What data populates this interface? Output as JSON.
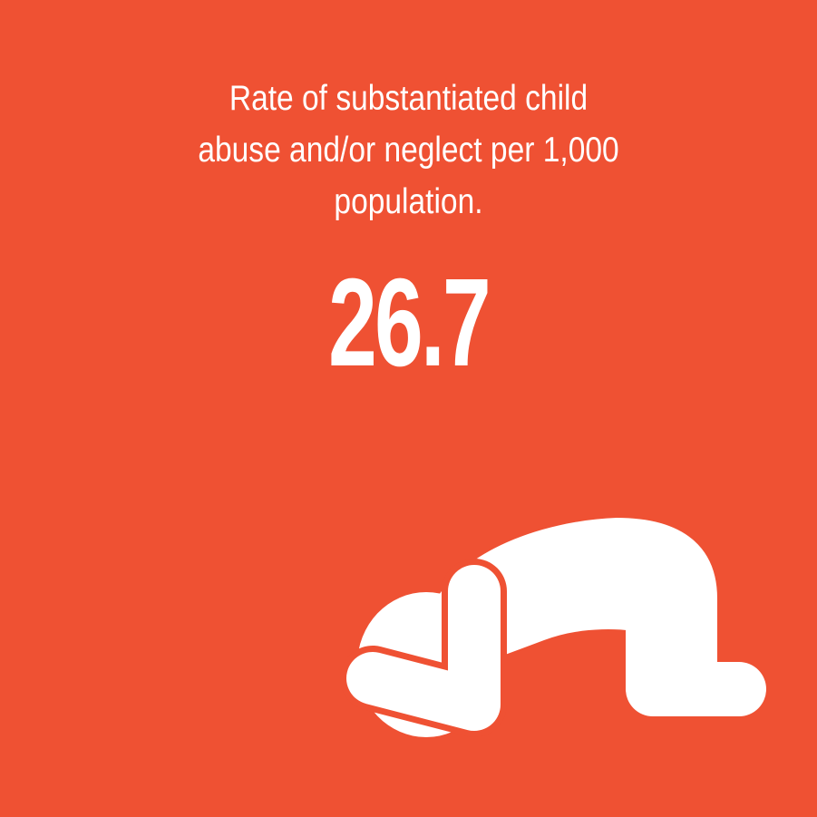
{
  "panel": {
    "background_color": "#ef5133",
    "text_color": "#ffffff",
    "caption_lines": [
      "Rate of substantiated child",
      "abuse and/or neglect per 1,000",
      "population."
    ],
    "stat_value": "26.7",
    "illustration_icon": "crouching-child-icon"
  }
}
